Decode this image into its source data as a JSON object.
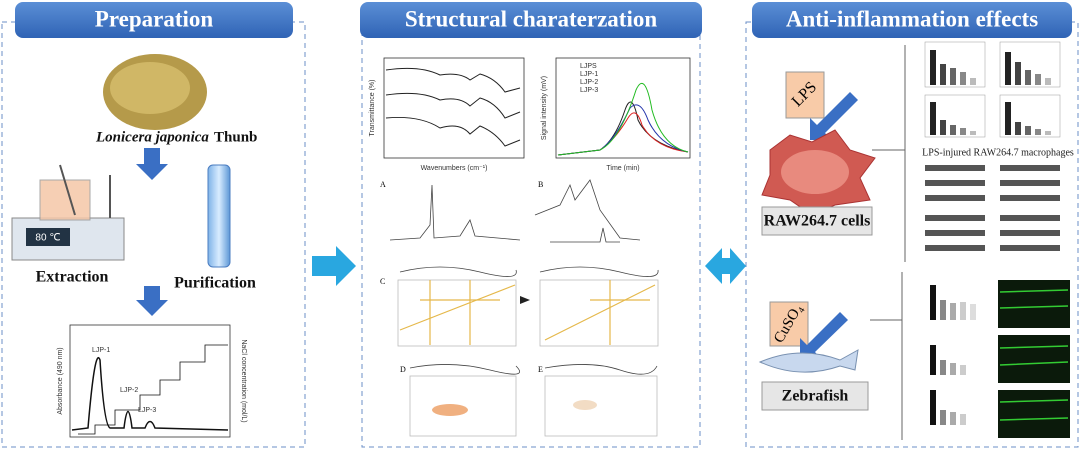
{
  "panels": [
    {
      "title": "Preparation",
      "species_italic": "Lonicera japonica",
      "species_rest": "Thunb",
      "display": "80 ℃",
      "steps": [
        "Extraction",
        "Purification"
      ],
      "plot": {
        "y_label": "Absorbance (490 nm)",
        "y2_label": "NaCl concentration (mol/L)",
        "peaks": [
          "LJP-1",
          "LJP-2",
          "LJP-3"
        ]
      }
    },
    {
      "title": "Structural charaterzation",
      "ir": {
        "x_label": "Wavenumbers (cm⁻¹)",
        "y_label": "Transmittance (%)"
      },
      "hplc": {
        "x_label": "Time (min)",
        "y_label": "Signal intensity (mV)",
        "legend": [
          "LJPS",
          "LJP-1",
          "LJP-2",
          "LJP-3"
        ]
      },
      "panel_letters": [
        "A",
        "B",
        "C",
        "D",
        "E"
      ]
    },
    {
      "title": "Anti-inflammation effects",
      "inducer1": "LPS",
      "model1": "RAW264.7 cells",
      "caption1": "LPS-injured RAW264.7 macrophages",
      "inducer2": "CuSO₄",
      "model2": "Zebrafish"
    }
  ]
}
